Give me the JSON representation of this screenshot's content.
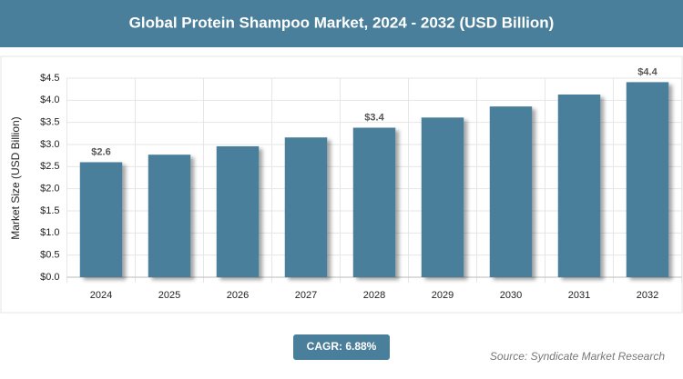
{
  "chart_data": {
    "type": "bar",
    "title": "Global Protein Shampoo Market, 2024 - 2032 (USD Billion)",
    "y_label": "Market Size (USD Billion)",
    "categories": [
      "2024",
      "2025",
      "2026",
      "2027",
      "2028",
      "2029",
      "2030",
      "2031",
      "2032"
    ],
    "values": [
      2.6,
      2.77,
      2.96,
      3.16,
      3.38,
      3.61,
      3.86,
      4.13,
      4.41
    ],
    "value_labels": [
      "$2.6",
      null,
      null,
      null,
      "$3.4",
      null,
      null,
      null,
      "$4.4"
    ],
    "color": "#4a7f9b",
    "ylim": [
      0,
      4.5
    ],
    "yticks": [
      {
        "value": 0,
        "label": "$0.0"
      },
      {
        "value": 0.5,
        "label": "$0.5"
      },
      {
        "value": 1,
        "label": "$1.0"
      },
      {
        "value": 1.5,
        "label": "$1.5"
      },
      {
        "value": 2,
        "label": "$2.0"
      },
      {
        "value": 2.5,
        "label": "$2.5"
      },
      {
        "value": 3,
        "label": "$3.0"
      },
      {
        "value": 3.5,
        "label": "$3.5"
      },
      {
        "value": 4,
        "label": "$4.0"
      },
      {
        "value": 4.5,
        "label": "$4.5"
      }
    ],
    "grid": true,
    "cagr": "CAGR: 6.88%",
    "source": "Source: Syndicate Market Research"
  }
}
